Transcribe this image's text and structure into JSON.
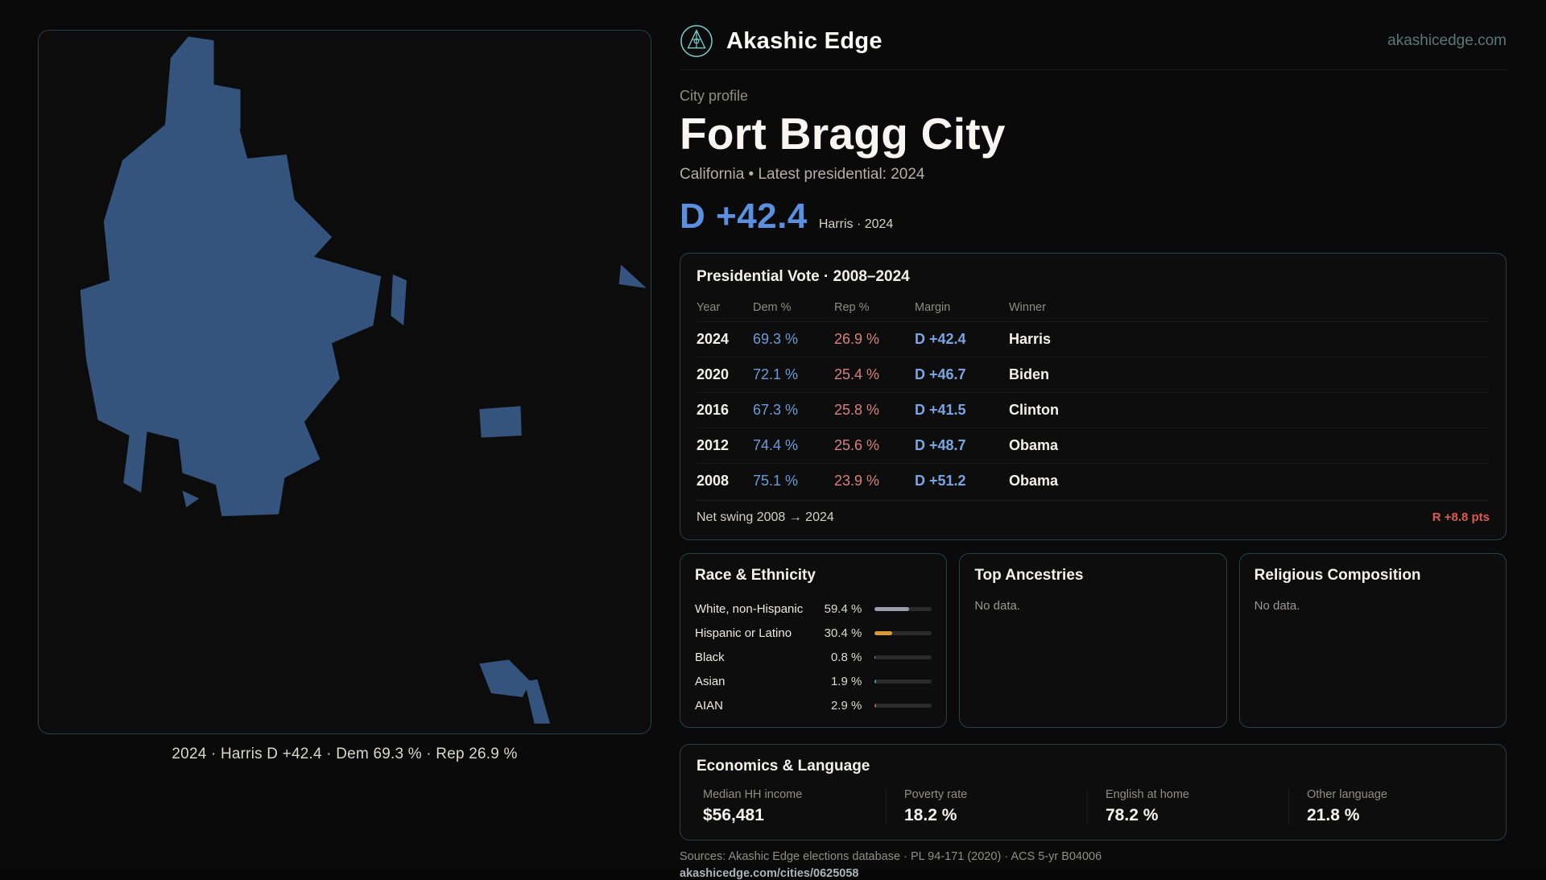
{
  "brand": {
    "name": "Akashic Edge",
    "domain": "akashicedge.com"
  },
  "map": {
    "caption": "2024 · Harris D +42.4 · Dem 69.3 % · Rep 26.9 %"
  },
  "profile": {
    "kicker": "City profile",
    "title": "Fort Bragg City",
    "subtitle": "California • Latest presidential: 2024",
    "headline_margin": "D +42.4",
    "headline_note": "Harris · 2024"
  },
  "vote_table": {
    "title": "Presidential Vote · 2008–2024",
    "columns": [
      "Year",
      "Dem %",
      "Rep %",
      "Margin",
      "Winner"
    ],
    "rows": [
      {
        "year": "2024",
        "dem": "69.3 %",
        "rep": "26.9 %",
        "margin": "D +42.4",
        "winner": "Harris"
      },
      {
        "year": "2020",
        "dem": "72.1 %",
        "rep": "25.4 %",
        "margin": "D +46.7",
        "winner": "Biden"
      },
      {
        "year": "2016",
        "dem": "67.3 %",
        "rep": "25.8 %",
        "margin": "D +41.5",
        "winner": "Clinton"
      },
      {
        "year": "2012",
        "dem": "74.4 %",
        "rep": "25.6 %",
        "margin": "D +48.7",
        "winner": "Obama"
      },
      {
        "year": "2008",
        "dem": "75.1 %",
        "rep": "23.9 %",
        "margin": "D +51.2",
        "winner": "Obama"
      }
    ],
    "footer_label": "Net swing 2008 → 2024",
    "footer_value": "R +8.8 pts"
  },
  "race": {
    "title": "Race & Ethnicity",
    "rows": [
      {
        "label": "White, non-Hispanic",
        "value": "59.4 %",
        "pct": 59.4,
        "color": "#99a0ac"
      },
      {
        "label": "Hispanic or Latino",
        "value": "30.4 %",
        "pct": 30.4,
        "color": "#d89a35"
      },
      {
        "label": "Black",
        "value": "0.8 %",
        "pct": 0.8,
        "color": "#8fa0c0"
      },
      {
        "label": "Asian",
        "value": "1.9 %",
        "pct": 1.9,
        "color": "#2fae9e"
      },
      {
        "label": "AIAN",
        "value": "2.9 %",
        "pct": 2.9,
        "color": "#c06a35"
      }
    ]
  },
  "ancestries": {
    "title": "Top Ancestries",
    "empty": "No data."
  },
  "religion": {
    "title": "Religious Composition",
    "empty": "No data."
  },
  "economics": {
    "title": "Economics & Language",
    "stats": [
      {
        "label": "Median HH income",
        "value": "$56,481"
      },
      {
        "label": "Poverty rate",
        "value": "18.2 %"
      },
      {
        "label": "English at home",
        "value": "78.2 %"
      },
      {
        "label": "Other language",
        "value": "21.8 %"
      }
    ]
  },
  "footer": {
    "sources": "Sources: Akashic Edge elections database · PL 94-171 (2020) · ACS 5-yr B04006",
    "permalink": "akashicedge.com/cities/0625058"
  },
  "colors": {
    "dem_blue": "#5b8fe0",
    "rep_red": "#d87f7f",
    "swing_red": "#dd5b4e",
    "map_fill": "#34537d",
    "panel_border": "#3f6a6a"
  }
}
